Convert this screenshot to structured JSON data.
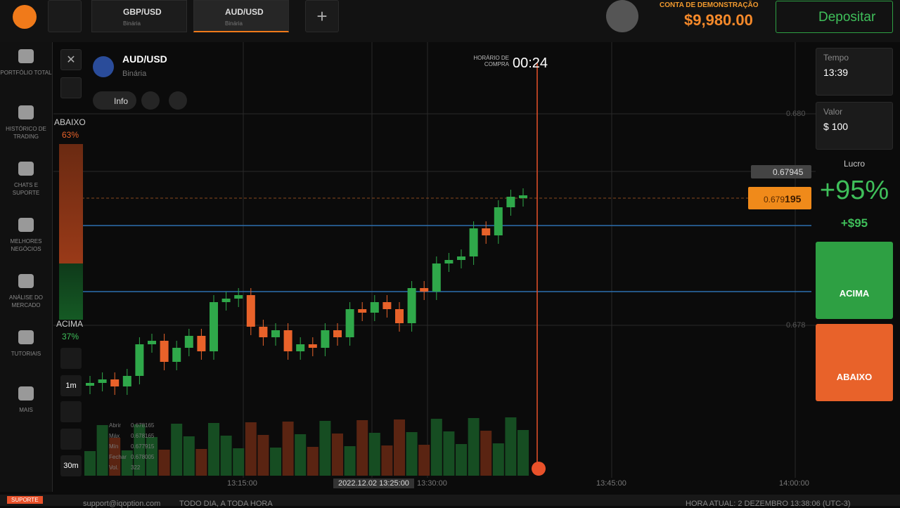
{
  "tabs": [
    {
      "pair": "GBP/USD",
      "kind": "Binária"
    },
    {
      "pair": "AUD/USD",
      "kind": "Binária"
    }
  ],
  "account": {
    "label": "CONTA DE DEMONSTRAÇÃO",
    "balance": "$9,980.00",
    "deposit": "Depositar"
  },
  "sidebar": [
    "PORTFÓLIO TOTAL",
    "HISTÓRICO DE TRADING",
    "CHATS E SUPORTE",
    "MELHORES NEGÓCIOS",
    "ANÁLISE DO MERCADO",
    "TUTORIAIS",
    "MAIS"
  ],
  "asset": {
    "pair": "AUD/USD",
    "kind": "Binária",
    "info": "Info"
  },
  "timer": {
    "label": "HORÁRIO DE COMPRA",
    "value": "00:24"
  },
  "sentiment": {
    "down_label": "ABAIXO",
    "down": "63%",
    "up_label": "ACIMA",
    "up": "37%"
  },
  "price_axis": {
    "high": "0.680",
    "low": "0.678",
    "alert": "0.67945",
    "current_main": "0.679",
    "current_tail": "195"
  },
  "tools": [
    "1m",
    "30m"
  ],
  "ohlc": [
    [
      "Abrir",
      "0.678165"
    ],
    [
      "Máx",
      "0.678165"
    ],
    [
      "Mín",
      "0.677915"
    ],
    [
      "Fechar",
      "0.678005"
    ],
    [
      "Vol.",
      "322"
    ]
  ],
  "time_axis": [
    "13:15:00",
    "2022.12.02 13:25:00",
    "13:30:00",
    "13:45:00",
    "14:00:00"
  ],
  "panel": {
    "time_label": "Tempo",
    "time": "13:39",
    "value_label": "Valor",
    "currency": "$",
    "amount": "100",
    "profit_label": "Lucro",
    "profit_pct": "+95%",
    "profit_amount": "+$95",
    "up": "ACIMA",
    "down": "ABAIXO"
  },
  "footer": {
    "support": "SUPORTE",
    "email": "support@iqoption.com",
    "hours": "TODO DIA, A TODA HORA",
    "clock": "HORA ATUAL: 2 DEZEMBRO 13:38:06 (UTC-3)"
  }
}
